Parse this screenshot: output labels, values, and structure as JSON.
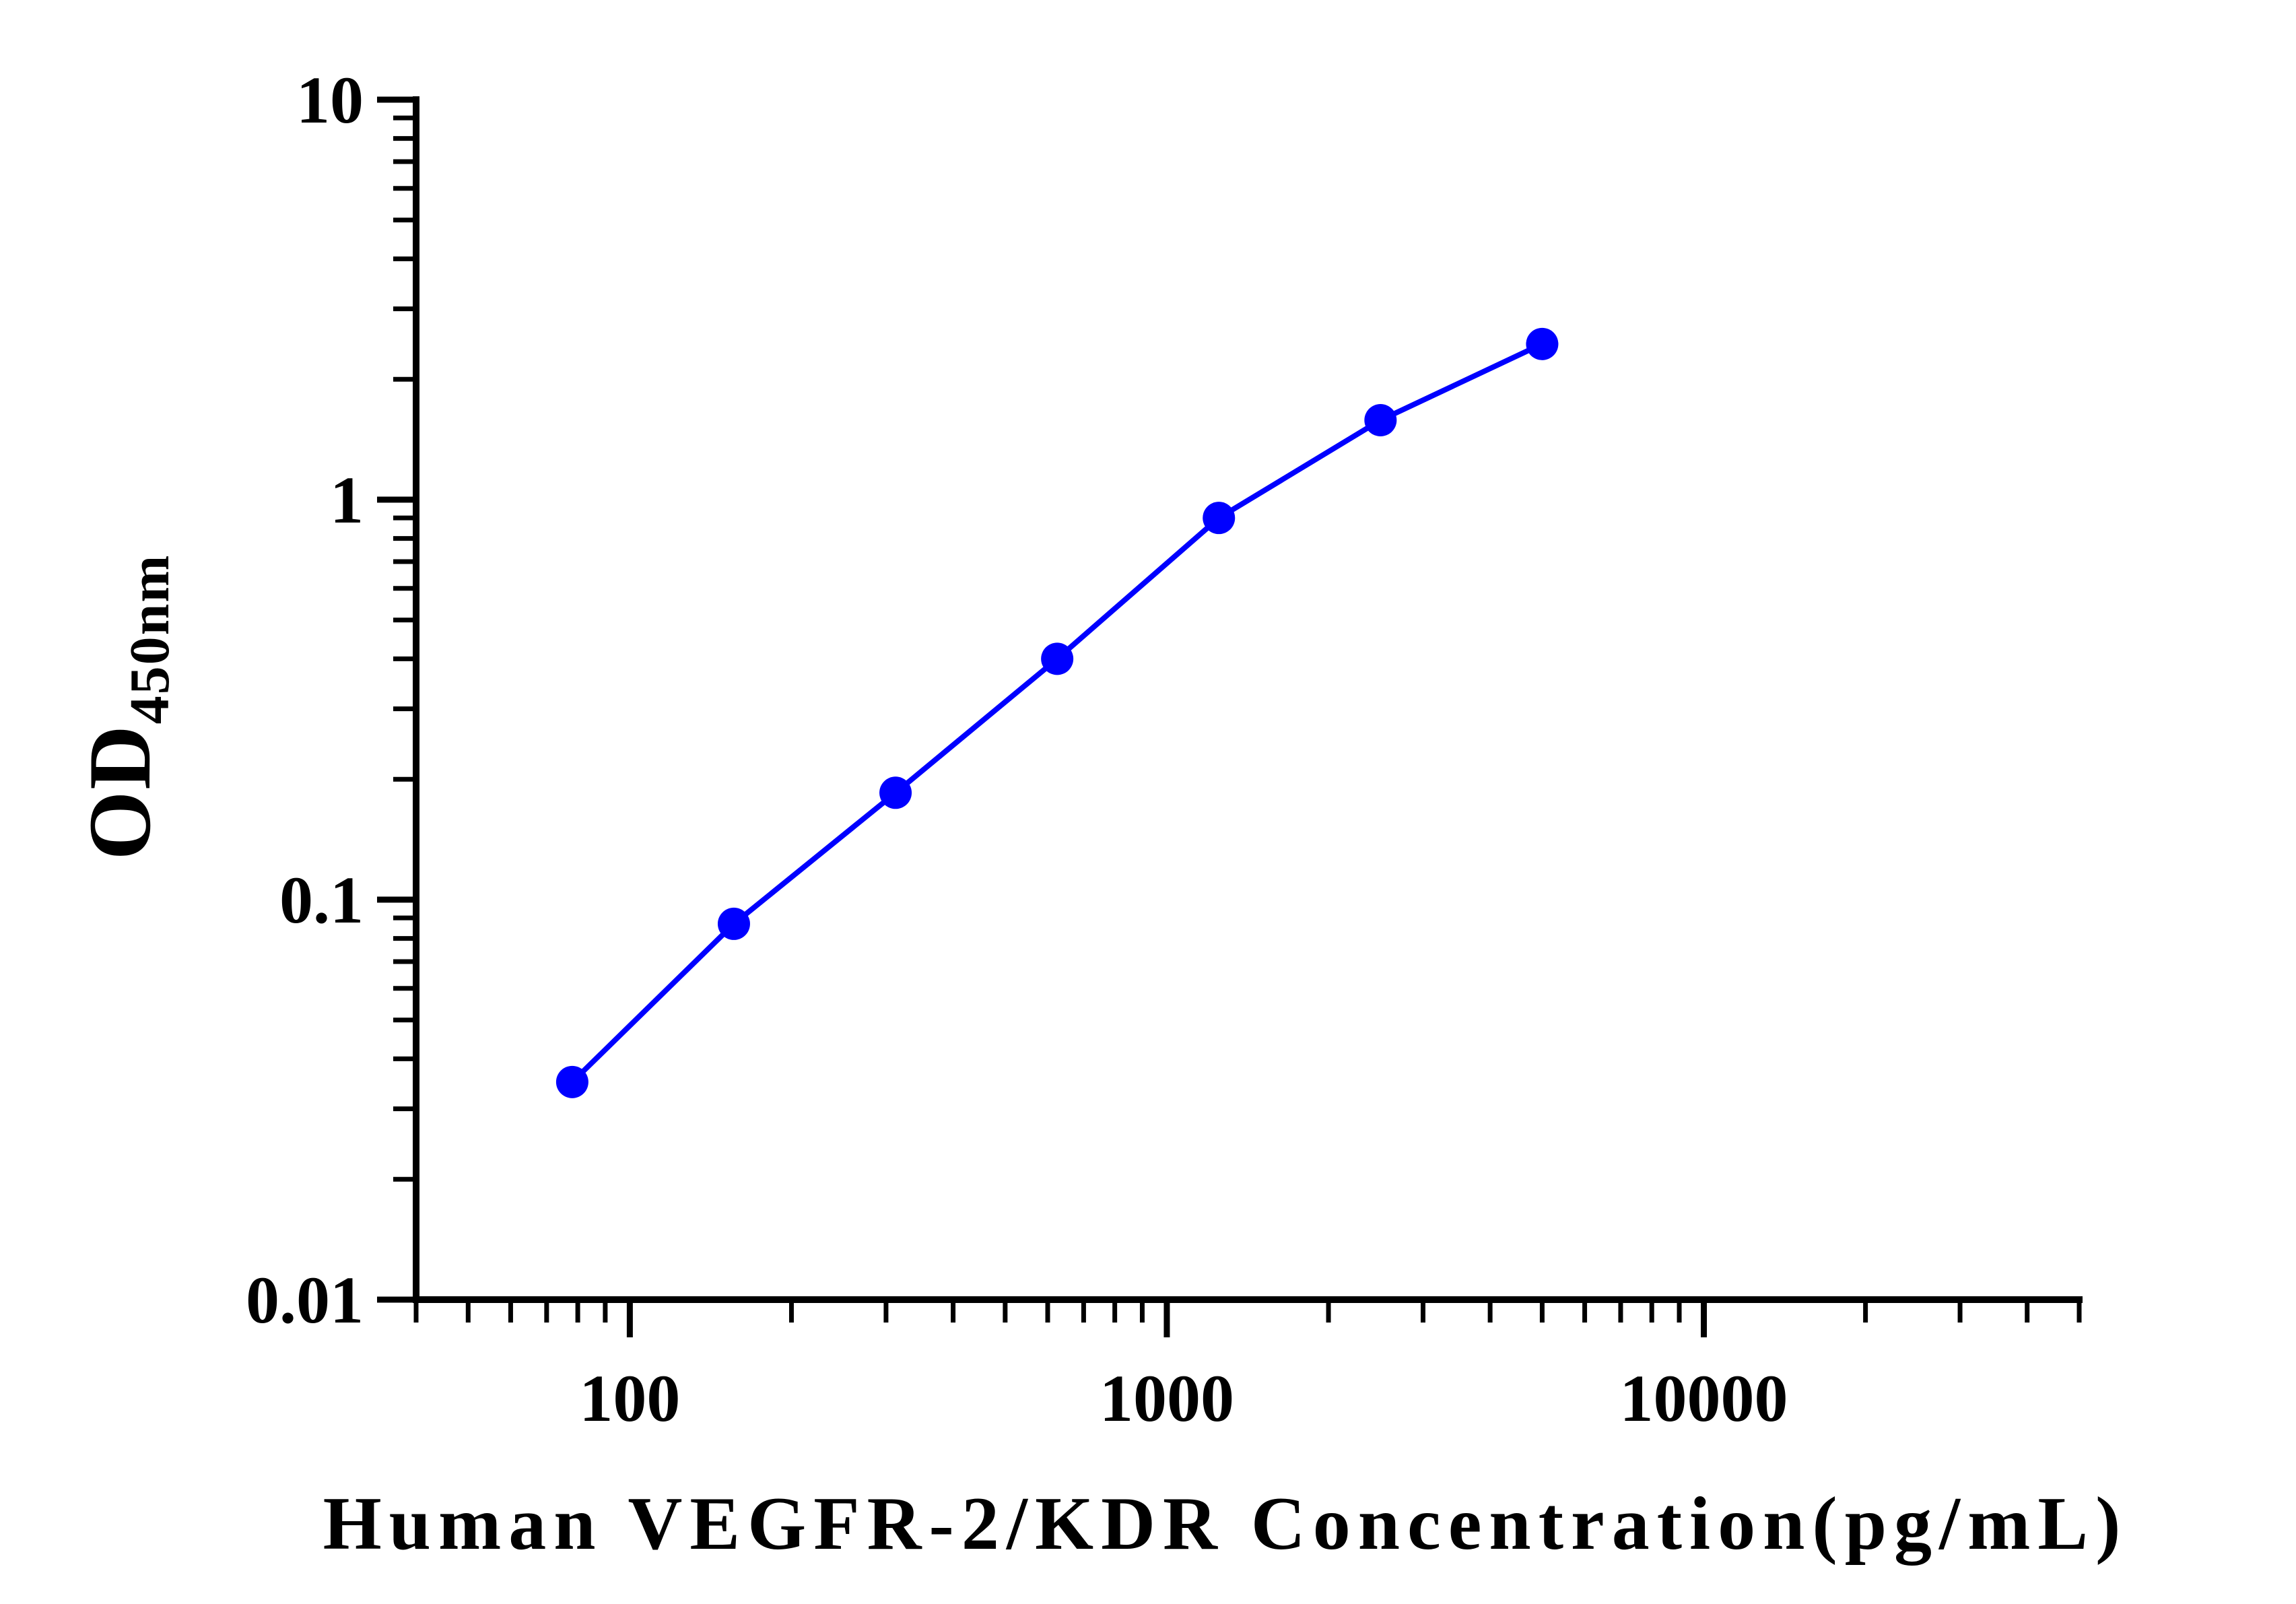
{
  "chart_data": {
    "type": "line",
    "title": "",
    "xlabel": "Human VEGFR-2/KDR Concentration(pg/mL)",
    "ylabel": "OD",
    "ylabel_subscript": "450nm",
    "x_scale": "log",
    "y_scale": "log",
    "xlim": [
      40,
      50000
    ],
    "ylim": [
      0.01,
      10
    ],
    "x_ticks": [
      {
        "value": 100,
        "label": "100"
      },
      {
        "value": 1000,
        "label": "1000"
      },
      {
        "value": 10000,
        "label": "10000"
      }
    ],
    "y_ticks": [
      {
        "value": 0.01,
        "label": "0.01"
      },
      {
        "value": 0.1,
        "label": "0.1"
      },
      {
        "value": 1,
        "label": "1"
      },
      {
        "value": 10,
        "label": "10"
      }
    ],
    "grid": false,
    "legend": "none",
    "series": [
      {
        "color": "#0000ff",
        "marker": "circle",
        "x": [
          78.13,
          156.25,
          312.5,
          625,
          1250,
          2500,
          5000
        ],
        "y": [
          0.035,
          0.087,
          0.185,
          0.4,
          0.9,
          1.58,
          2.45
        ]
      }
    ]
  }
}
